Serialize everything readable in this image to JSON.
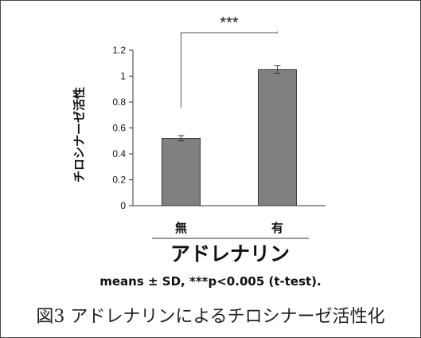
{
  "chart_data": {
    "type": "bar",
    "categories": [
      "無",
      "有"
    ],
    "values": [
      0.52,
      1.05
    ],
    "errors": [
      0.02,
      0.03
    ],
    "ylabel": "チロシナーゼ活性",
    "xlabel": "アドレナリン",
    "ylim": [
      0,
      1.2
    ],
    "yticks": [
      "0",
      "0.2",
      "0.4",
      "0.6",
      "0.8",
      "1",
      "1.2"
    ],
    "significance": "***",
    "bar_color": "#808080",
    "grid": false
  },
  "note": "means ± SD,  ***p<0.005 (t-test).",
  "caption": "図3 アドレナリンによるチロシナーゼ活性化"
}
